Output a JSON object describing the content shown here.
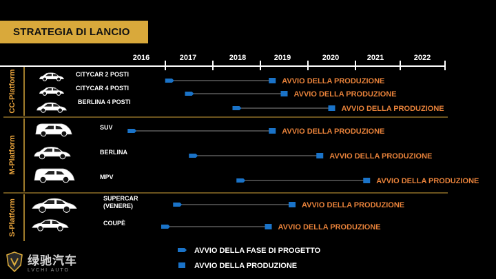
{
  "title": "STRATEGIA DI LANCIO",
  "years": [
    "2016",
    "2017",
    "2018",
    "2019",
    "2020",
    "2021",
    "2022"
  ],
  "platforms": [
    {
      "name": "CC-Platform"
    },
    {
      "name": "M-Platform"
    },
    {
      "name": "S-Platform"
    }
  ],
  "production_label": "AVVIO DELLA PRODUZIONE",
  "models": [
    {
      "name": "CITYCAR 2 POSTI",
      "platform": "CC-Platform",
      "icon": "citycar-icon",
      "design_start": "2017.1",
      "production_start": "2019.3"
    },
    {
      "name": "CITYCAR 4 POSTI",
      "platform": "CC-Platform",
      "icon": "citycar-4-icon",
      "design_start": "2017.6",
      "production_start": "2019.6"
    },
    {
      "name": "BERLINA 4 POSTI",
      "platform": "CC-Platform",
      "icon": "sedan-icon",
      "design_start": "2018.6",
      "production_start": "2020.6"
    },
    {
      "name": "SUV",
      "platform": "M-Platform",
      "icon": "suv-icon",
      "design_start": "2016.3",
      "production_start": "2019.3"
    },
    {
      "name": "BERLINA",
      "platform": "M-Platform",
      "icon": "sedan-icon",
      "design_start": "2017.7",
      "production_start": "2020.3"
    },
    {
      "name": "MPV",
      "platform": "M-Platform",
      "icon": "mpv-icon",
      "design_start": "2018.7",
      "production_start": "2021.3"
    },
    {
      "name": "SUPERCAR\n(VENERE)",
      "platform": "S-Platform",
      "icon": "supercar-icon",
      "design_start": "2017.3",
      "production_start": "2019.8"
    },
    {
      "name": "COUPÈ",
      "platform": "S-Platform",
      "icon": "coupe-icon",
      "design_start": "2017.0",
      "production_start": "2019.2"
    }
  ],
  "legend": {
    "design": "AVVIO DELLA FASE DI PROGETTO",
    "production": "AVVIO DELLA PRODUZIONE"
  },
  "logo": {
    "chinese": "绿驰汽车",
    "latin": "LVCHI AUTO"
  },
  "colors": {
    "accent_gold": "#d9a93b",
    "production_text": "#e8823a",
    "marker_blue": "#1a73c8",
    "background": "#000000"
  }
}
